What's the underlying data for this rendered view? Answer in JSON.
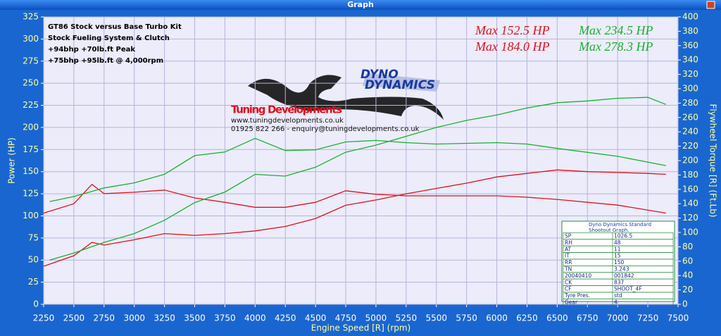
{
  "window_title": "Graph",
  "chart_data": {
    "type": "line",
    "notes": [
      "GT86 Stock versus Base Turbo Kit",
      "Stock Fueling System & Clutch",
      "+94bhp  +70lb.ft Peak",
      "+75bhp  +95lb.ft @ 4,000rpm"
    ],
    "max_labels": [
      {
        "text": "Max 152.5 HP",
        "color": "#e0101c"
      },
      {
        "text": "Max 234.5 HP",
        "color": "#18b030"
      },
      {
        "text": "Max 184.0 HP",
        "color": "#e0101c"
      },
      {
        "text": "Max 278.3 HP",
        "color": "#18b030"
      }
    ],
    "logo": {
      "brand_top": "DYNO",
      "brand_bottom": "DYNAMICS",
      "name": "Tuning Developments",
      "web": "www.tuningdevelopments.co.uk",
      "contact": "01925 822 266 - enquiry@tuningdevelopments.co.uk"
    },
    "info_table": {
      "title_lines": [
        "Dyno Dynamics Standard",
        "Shootout Graph."
      ],
      "rows": [
        [
          "SP",
          "1026.5"
        ],
        [
          "RH",
          "48"
        ],
        [
          "AT",
          "11"
        ],
        [
          "IT",
          "15"
        ],
        [
          "RR",
          "150"
        ],
        [
          "TN",
          "3.243"
        ],
        [
          "20040410",
          "001842"
        ],
        [
          "CK",
          "837"
        ],
        [
          "CF",
          "SHOOT_4F"
        ],
        [
          "Tyre Pres.",
          "std"
        ],
        [
          "Gear",
          "4"
        ]
      ]
    },
    "xlabel": "Engine Speed [R] (rpm)",
    "ylabel": "Power (HP)",
    "y2label": "Flywheel Torque [R] (Ft.Lb)",
    "xlim": [
      2250,
      7500
    ],
    "xticks": [
      2250,
      2500,
      2750,
      3000,
      3250,
      3500,
      3750,
      4000,
      4250,
      4500,
      4750,
      5000,
      5250,
      5500,
      5750,
      6000,
      6250,
      6500,
      6750,
      7000,
      7250,
      7500
    ],
    "ylim": [
      0,
      325
    ],
    "yticks": [
      0,
      25,
      50,
      75,
      100,
      125,
      150,
      175,
      200,
      225,
      250,
      275,
      300,
      325
    ],
    "y2lim": [
      0,
      400
    ],
    "y2ticks": [
      0,
      20,
      40,
      60,
      80,
      100,
      120,
      140,
      160,
      180,
      200,
      220,
      240,
      260,
      280,
      300,
      320,
      340,
      360,
      380,
      400
    ],
    "grid": true,
    "series": [
      {
        "color": "#e0101c",
        "x": [
          2250,
          2500,
          2650,
          2750,
          3000,
          3250,
          3500,
          3750,
          4000,
          4250,
          4500,
          4750,
          5000,
          5250,
          5500,
          5750,
          6000,
          6250,
          6500,
          6750,
          7000,
          7250,
          7400
        ],
        "values": [
          43,
          55,
          70,
          67,
          73,
          80,
          78,
          80,
          83,
          88,
          97,
          112,
          118,
          125,
          131,
          137,
          144,
          148,
          152,
          150,
          149,
          148,
          147
        ]
      },
      {
        "color": "#e0101c",
        "axis": "y2",
        "x": [
          2250,
          2500,
          2650,
          2750,
          3000,
          3250,
          3500,
          3750,
          4000,
          4250,
          4500,
          4750,
          5000,
          5250,
          5500,
          6000,
          6250,
          6500,
          7000,
          7400
        ],
        "values": [
          127,
          140,
          167,
          154,
          156,
          159,
          148,
          142,
          135,
          135,
          142,
          158,
          153,
          151,
          151,
          151,
          149,
          146,
          138,
          127
        ]
      },
      {
        "color": "#18b030",
        "x": [
          2300,
          2500,
          2750,
          3000,
          3250,
          3500,
          3750,
          4000,
          4250,
          4500,
          4750,
          5000,
          5250,
          5500,
          5750,
          6000,
          6250,
          6500,
          6750,
          7000,
          7250,
          7400
        ],
        "values": [
          50,
          58,
          70,
          80,
          95,
          115,
          127,
          147,
          145,
          155,
          172,
          180,
          190,
          200,
          208,
          214,
          222,
          228,
          230,
          233,
          234,
          226
        ]
      },
      {
        "color": "#18b030",
        "axis": "y2",
        "x": [
          2300,
          2500,
          2750,
          3000,
          3250,
          3500,
          3750,
          4000,
          4250,
          4500,
          4750,
          5000,
          5250,
          5500,
          6000,
          6250,
          6500,
          7000,
          7400
        ],
        "values": [
          143,
          150,
          162,
          169,
          181,
          207,
          212,
          231,
          214,
          215,
          226,
          228,
          225,
          223,
          225,
          223,
          217,
          206,
          193
        ]
      }
    ]
  }
}
